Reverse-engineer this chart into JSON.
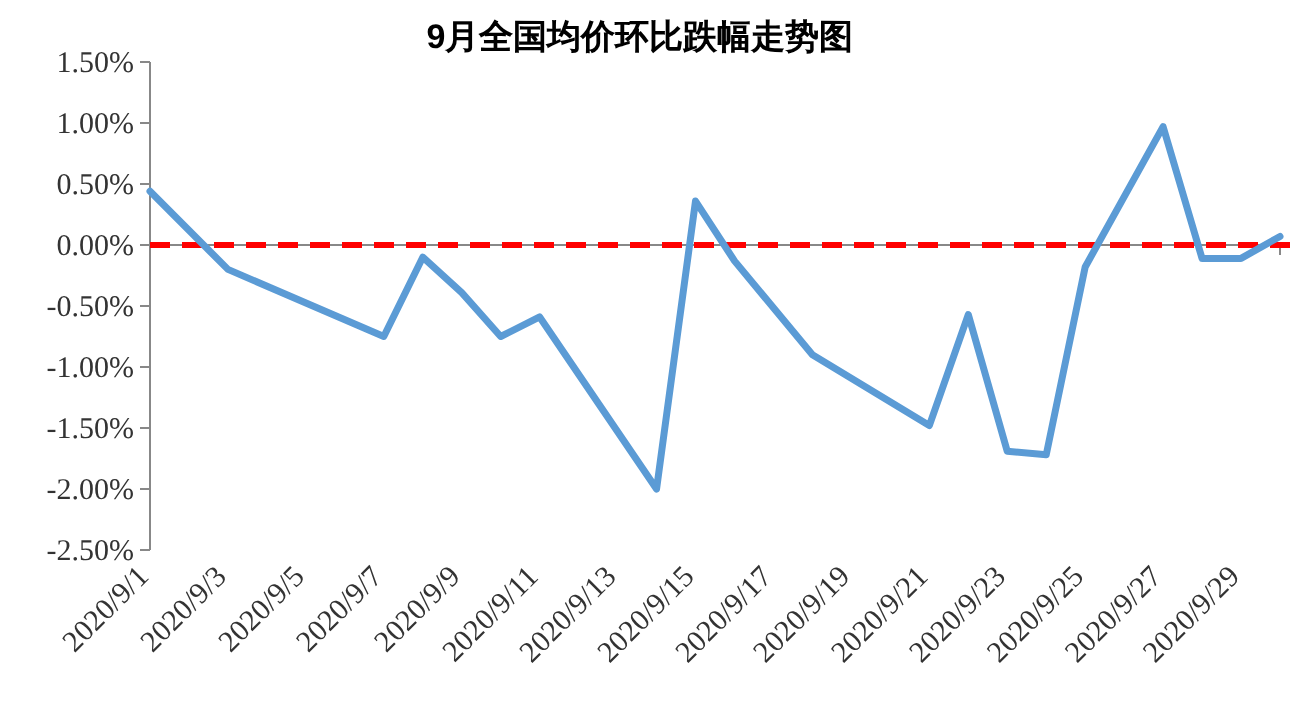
{
  "chart_data": {
    "type": "line",
    "title": "9月全国均价环比跌幅走势图",
    "x": [
      "2020-09-01",
      "2020-09-03",
      "2020-09-07",
      "2020-09-08",
      "2020-09-09",
      "2020-09-10",
      "2020-09-11",
      "2020-09-14",
      "2020-09-15",
      "2020-09-16",
      "2020-09-18",
      "2020-09-21",
      "2020-09-22",
      "2020-09-23",
      "2020-09-24",
      "2020-09-25",
      "2020-09-27",
      "2020-09-28",
      "2020-09-29",
      "2020-09-30"
    ],
    "series": [
      {
        "color": "#5b9bd5",
        "values": [
          0.44,
          -0.2,
          -0.75,
          -0.1,
          -0.39,
          -0.75,
          -0.59,
          -2.0,
          0.36,
          -0.13,
          -0.9,
          -1.48,
          -0.57,
          -1.69,
          -1.72,
          -0.18,
          0.97,
          -0.11,
          -0.11,
          0.07
        ]
      }
    ],
    "xticks": [
      {
        "value": "2020-09-01",
        "label": "2020/9/1"
      },
      {
        "value": "2020-09-03",
        "label": "2020/9/3"
      },
      {
        "value": "2020-09-05",
        "label": "2020/9/5"
      },
      {
        "value": "2020-09-07",
        "label": "2020/9/7"
      },
      {
        "value": "2020-09-09",
        "label": "2020/9/9"
      },
      {
        "value": "2020-09-11",
        "label": "2020/9/11"
      },
      {
        "value": "2020-09-13",
        "label": "2020/9/13"
      },
      {
        "value": "2020-09-15",
        "label": "2020/9/15"
      },
      {
        "value": "2020-09-17",
        "label": "2020/9/17"
      },
      {
        "value": "2020-09-19",
        "label": "2020/9/19"
      },
      {
        "value": "2020-09-21",
        "label": "2020/9/21"
      },
      {
        "value": "2020-09-23",
        "label": "2020/9/23"
      },
      {
        "value": "2020-09-25",
        "label": "2020/9/25"
      },
      {
        "value": "2020-09-27",
        "label": "2020/9/27"
      },
      {
        "value": "2020-09-29",
        "label": "2020/9/29"
      }
    ],
    "xlim": [
      "2020-09-01",
      "2020-09-30"
    ],
    "ylim": [
      -2.5,
      1.5
    ],
    "yticks": [
      {
        "value": 1.5,
        "label": "1.50%"
      },
      {
        "value": 1.0,
        "label": "1.00%"
      },
      {
        "value": 0.5,
        "label": "0.50%"
      },
      {
        "value": 0,
        "label": "0.00%"
      },
      {
        "value": -0.5,
        "label": "-0.50%"
      },
      {
        "value": -1.0,
        "label": "-1.00%"
      },
      {
        "value": -1.5,
        "label": "-1.50%"
      },
      {
        "value": -2.0,
        "label": "-2.00%"
      },
      {
        "value": -2.5,
        "label": "-2.50%"
      }
    ],
    "ref_lines": [
      {
        "axis": "y",
        "value": 0,
        "color": "#ff0000",
        "line_style": "dashed"
      }
    ]
  }
}
